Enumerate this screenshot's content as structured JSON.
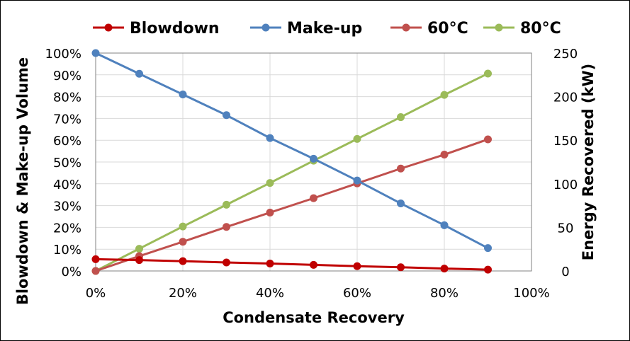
{
  "chart_data": {
    "type": "line",
    "xlabel": "Condensate Recovery",
    "ylabel_left": "Blowdown & Make-up Volume",
    "ylabel_right": "Energy Recovered (kW)",
    "x_ticks": [
      "0%",
      "20%",
      "40%",
      "60%",
      "80%",
      "100%"
    ],
    "y_left_ticks": [
      "0%",
      "10%",
      "20%",
      "30%",
      "40%",
      "50%",
      "60%",
      "70%",
      "80%",
      "90%",
      "100%"
    ],
    "y_right_ticks": [
      "0",
      "50",
      "100",
      "150",
      "200",
      "250"
    ],
    "xlim": [
      0,
      100
    ],
    "ylim_left": [
      0,
      100
    ],
    "ylim_right": [
      0,
      250
    ],
    "grid": true,
    "legend_position": "top",
    "x": [
      0,
      10,
      20,
      30,
      40,
      50,
      60,
      70,
      80,
      90
    ],
    "series": [
      {
        "name": "Blowdown",
        "axis": "left",
        "color": "#C00000",
        "values": [
          5.4,
          5.0,
          4.5,
          3.9,
          3.4,
          2.8,
          2.2,
          1.7,
          1.1,
          0.6
        ]
      },
      {
        "name": "Make-up",
        "axis": "left",
        "color": "#4F81BD",
        "values": [
          100,
          90.5,
          81,
          71.5,
          61,
          51.5,
          41.5,
          31,
          21,
          10.5
        ]
      },
      {
        "name": "60°C",
        "axis": "right",
        "color": "#C0504D",
        "values": [
          0,
          17,
          33.5,
          50.5,
          67,
          83.5,
          100.5,
          117.5,
          133.5,
          151
        ]
      },
      {
        "name": "80°C",
        "axis": "right",
        "color": "#9BBB59",
        "values": [
          0,
          25.5,
          51,
          76,
          101,
          126.5,
          151.5,
          176.5,
          202,
          226.5
        ]
      }
    ]
  }
}
